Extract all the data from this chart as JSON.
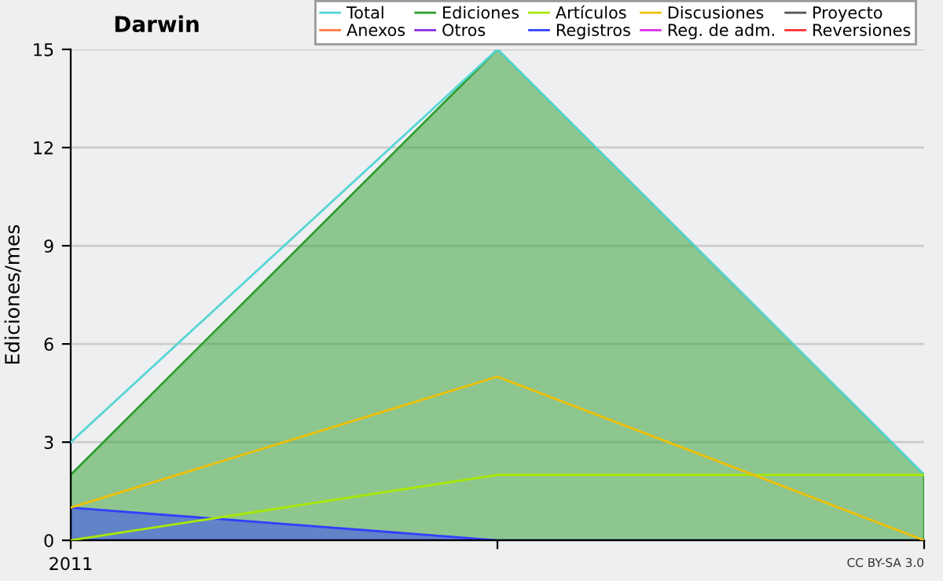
{
  "chart_data": {
    "type": "area",
    "title": "Darwin",
    "ylabel": "Ediciones/mes",
    "categories": [
      "2011",
      null,
      null
    ],
    "ylim": [
      0,
      15
    ],
    "yticks": [
      0,
      3,
      6,
      9,
      12,
      15
    ],
    "grid": "y",
    "legend": "top right",
    "annotations": [
      "CC BY-SA 3.0"
    ],
    "series": [
      {
        "name": "Total",
        "type": "line",
        "color": "#55d5d5",
        "values": [
          3,
          15,
          2
        ]
      },
      {
        "name": "Ediciones",
        "color": "#2e9e2e",
        "values": [
          2,
          15,
          2
        ]
      },
      {
        "name": "Artículos",
        "type": "line",
        "color": "#a8e800",
        "values": [
          0,
          2,
          2
        ]
      },
      {
        "name": "Discusiones",
        "type": "line",
        "color": "#f0c000",
        "values": [
          1,
          5,
          0
        ]
      },
      {
        "name": "Proyecto",
        "color": "#555555",
        "values": [
          null,
          null,
          null
        ]
      },
      {
        "name": "Anexos",
        "type": "line",
        "color": "#ff7a40",
        "values": [
          null,
          null,
          null
        ]
      },
      {
        "name": "Otros",
        "type": "line",
        "color": "#8a30e0",
        "values": [
          null,
          null,
          null
        ]
      },
      {
        "name": "Registros",
        "color": "#3340ff",
        "values": [
          1,
          0,
          0
        ]
      },
      {
        "name": "Reg. de adm.",
        "type": "line",
        "color": "#d830e8",
        "values": [
          null,
          null,
          null
        ]
      },
      {
        "name": "Reversiones",
        "type": "line",
        "color": "#ff3030",
        "values": [
          null,
          null,
          null
        ]
      }
    ]
  }
}
